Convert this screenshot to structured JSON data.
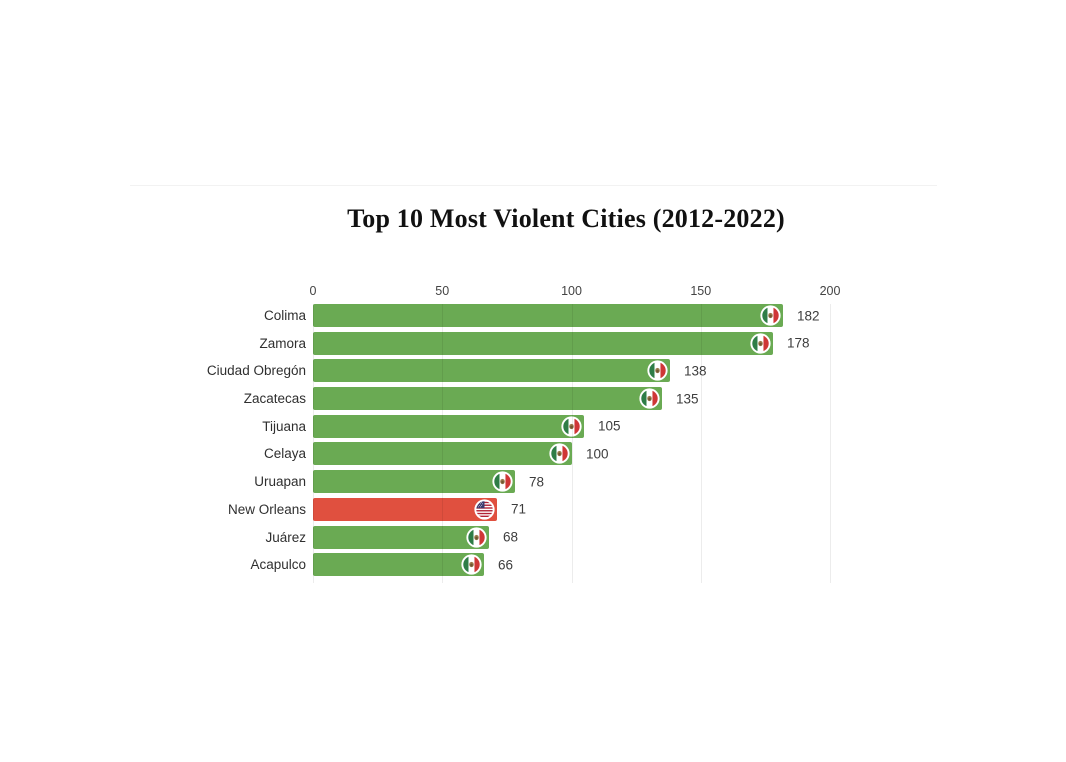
{
  "chart_data": {
    "type": "bar",
    "orientation": "horizontal",
    "title": "Top 10 Most Violent Cities (2012-2022)",
    "categories": [
      "Colima",
      "Zamora",
      "Ciudad Obregón",
      "Zacatecas",
      "Tijuana",
      "Celaya",
      "Uruapan",
      "New Orleans",
      "Juárez",
      "Acapulco"
    ],
    "values": [
      182,
      178,
      138,
      135,
      105,
      100,
      78,
      71,
      68,
      66
    ],
    "flags": [
      "mexico",
      "mexico",
      "mexico",
      "mexico",
      "mexico",
      "mexico",
      "mexico",
      "us",
      "mexico",
      "mexico"
    ],
    "bar_colors": {
      "mexico": "#6aaa53",
      "us": "#e0503f"
    },
    "xlabel": "",
    "ylabel": "",
    "xlim": [
      0,
      200
    ],
    "xticks": [
      0,
      50,
      100,
      150,
      200
    ],
    "grid": true,
    "legend": "none",
    "value_labels": true,
    "axis_position": "top"
  },
  "colors": {
    "title_text": "#111111",
    "category_text": "#2f2f2f",
    "value_text": "#3d3d3d",
    "tick_text": "#444444",
    "background": "#ffffff"
  }
}
